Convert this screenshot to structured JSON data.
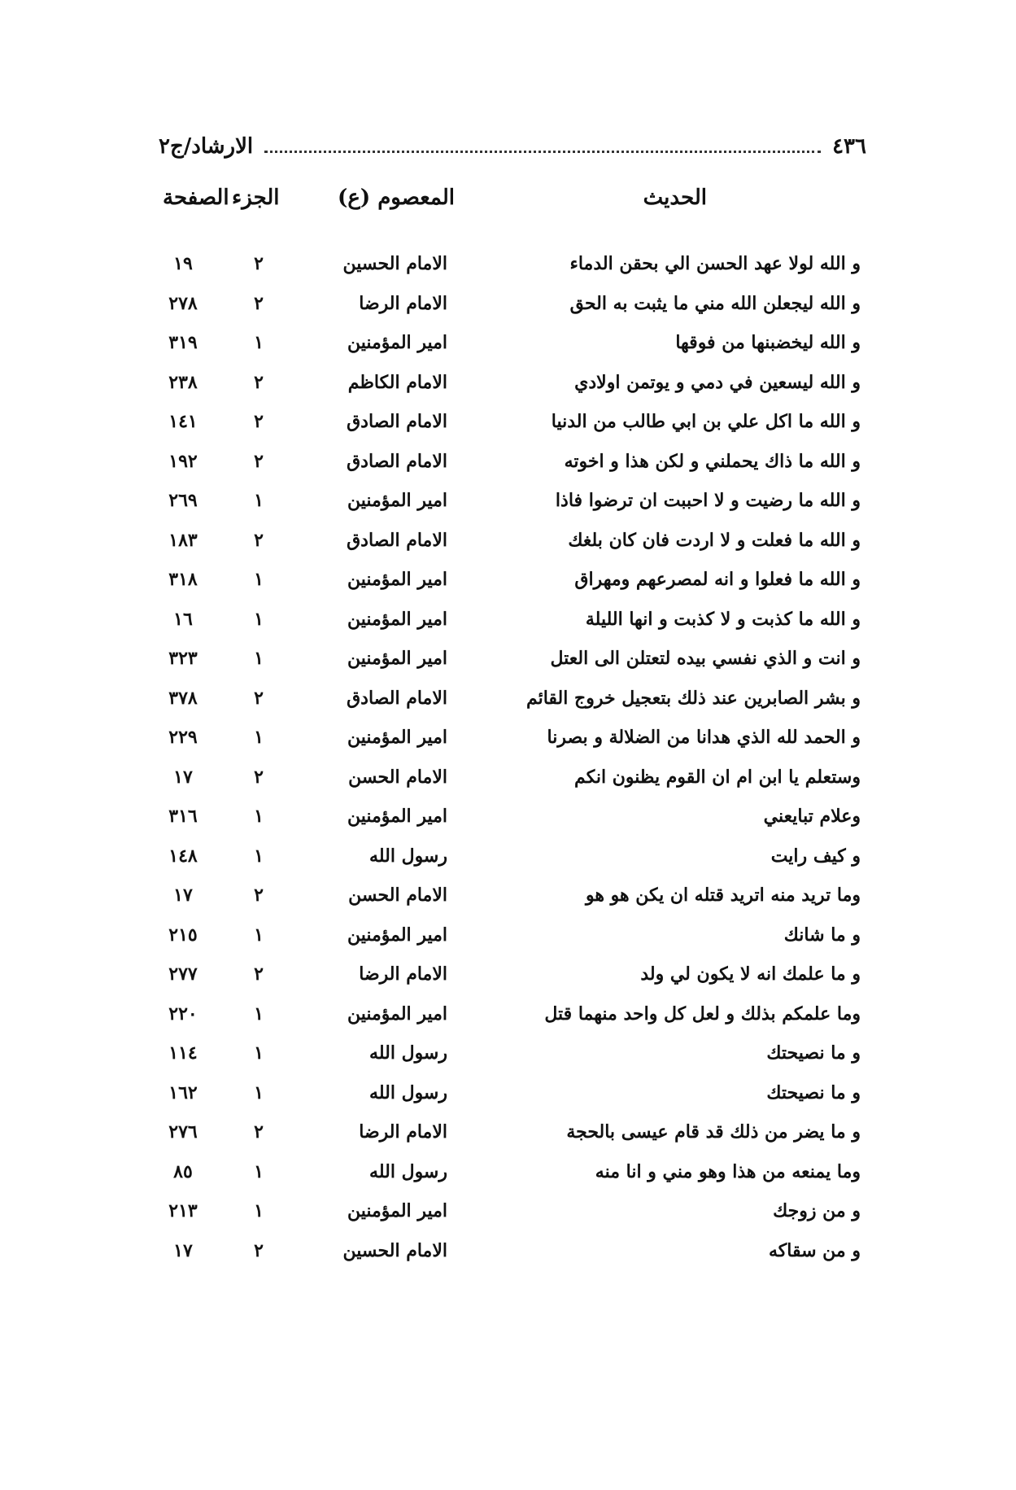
{
  "header": {
    "page_number": "٤٣٦",
    "running_title": "الارشاد/ج٢"
  },
  "columns": {
    "hadith": "الحديث",
    "masoom": "المعصوم (ع)",
    "juz": "الجزء",
    "page": "الصفحة"
  },
  "rows": [
    {
      "hadith": "و الله لولا عهد الحسن الي بحقن الدماء",
      "masoom": "الامام الحسين",
      "juz": "٢",
      "page": "١٩"
    },
    {
      "hadith": "و الله ليجعلن الله مني ما يثبت به الحق",
      "masoom": "الامام الرضا",
      "juz": "٢",
      "page": "٢٧٨"
    },
    {
      "hadith": "و الله ليخضبنها من فوقها",
      "masoom": "امير المؤمنين",
      "juz": "١",
      "page": "٣١٩"
    },
    {
      "hadith": "و الله ليسعين في دمي و يوتمن اولادي",
      "masoom": "الامام الكاظم",
      "juz": "٢",
      "page": "٢٣٨"
    },
    {
      "hadith": "و الله ما اكل علي بن ابي طالب من الدنيا",
      "masoom": "الامام الصادق",
      "juz": "٢",
      "page": "١٤١"
    },
    {
      "hadith": "و الله ما ذاك يحملني و لكن هذا و اخوته",
      "masoom": "الامام الصادق",
      "juz": "٢",
      "page": "١٩٢"
    },
    {
      "hadith": "و الله ما رضيت و لا احببت ان ترضوا فاذا",
      "masoom": "امير المؤمنين",
      "juz": "١",
      "page": "٢٦٩"
    },
    {
      "hadith": "و الله ما فعلت و لا اردت فان كان بلغك",
      "masoom": "الامام الصادق",
      "juz": "٢",
      "page": "١٨٣"
    },
    {
      "hadith": "و الله ما فعلوا و انه لمصرعهم ومهراق",
      "masoom": "امير المؤمنين",
      "juz": "١",
      "page": "٣١٨"
    },
    {
      "hadith": "و الله ما كذبت و لا كذبت و انها الليلة",
      "masoom": "امير المؤمنين",
      "juz": "١",
      "page": "١٦"
    },
    {
      "hadith": "و انت و الذي نفسي بيده لتعتلن الى العتل",
      "masoom": "امير المؤمنين",
      "juz": "١",
      "page": "٣٢٣"
    },
    {
      "hadith": "و بشر الصابرين عند ذلك بتعجيل خروج القائم",
      "masoom": "الامام الصادق",
      "juz": "٢",
      "page": "٣٧٨"
    },
    {
      "hadith": "و الحمد لله الذي هدانا من الضلالة و بصرنا",
      "masoom": "امير المؤمنين",
      "juz": "١",
      "page": "٢٢٩"
    },
    {
      "hadith": "وستعلم يا ابن ام ان القوم يظنون انكم",
      "masoom": "الامام الحسن",
      "juz": "٢",
      "page": "١٧"
    },
    {
      "hadith": "وعلام تبايعني",
      "masoom": "امير المؤمنين",
      "juz": "١",
      "page": "٣١٦"
    },
    {
      "hadith": "و كيف رايت",
      "masoom": "رسول الله",
      "juz": "١",
      "page": "١٤٨"
    },
    {
      "hadith": "وما تريد منه اتريد قتله ان يكن هو هو",
      "masoom": "الامام الحسن",
      "juz": "٢",
      "page": "١٧"
    },
    {
      "hadith": "و ما شانك",
      "masoom": "امير المؤمنين",
      "juz": "١",
      "page": "٢١٥"
    },
    {
      "hadith": "و ما علمك انه لا يكون لي ولد",
      "masoom": "الامام الرضا",
      "juz": "٢",
      "page": "٢٧٧"
    },
    {
      "hadith": "وما علمكم بذلك و لعل كل واحد منهما قتل",
      "masoom": "امير المؤمنين",
      "juz": "١",
      "page": "٢٢٠"
    },
    {
      "hadith": "و ما نصيحتك",
      "masoom": "رسول الله",
      "juz": "١",
      "page": "١١٤"
    },
    {
      "hadith": "و ما نصيحتك",
      "masoom": "رسول الله",
      "juz": "١",
      "page": "١٦٢"
    },
    {
      "hadith": "و ما يضر من ذلك قد قام عيسى بالحجة",
      "masoom": "الامام الرضا",
      "juz": "٢",
      "page": "٢٧٦"
    },
    {
      "hadith": "وما يمنعه من هذا وهو مني و انا منه",
      "masoom": "رسول الله",
      "juz": "١",
      "page": "٨٥"
    },
    {
      "hadith": "و من زوجك",
      "masoom": "امير المؤمنين",
      "juz": "١",
      "page": "٢١٣"
    },
    {
      "hadith": "و من سقاكه",
      "masoom": "الامام الحسين",
      "juz": "٢",
      "page": "١٧"
    }
  ]
}
